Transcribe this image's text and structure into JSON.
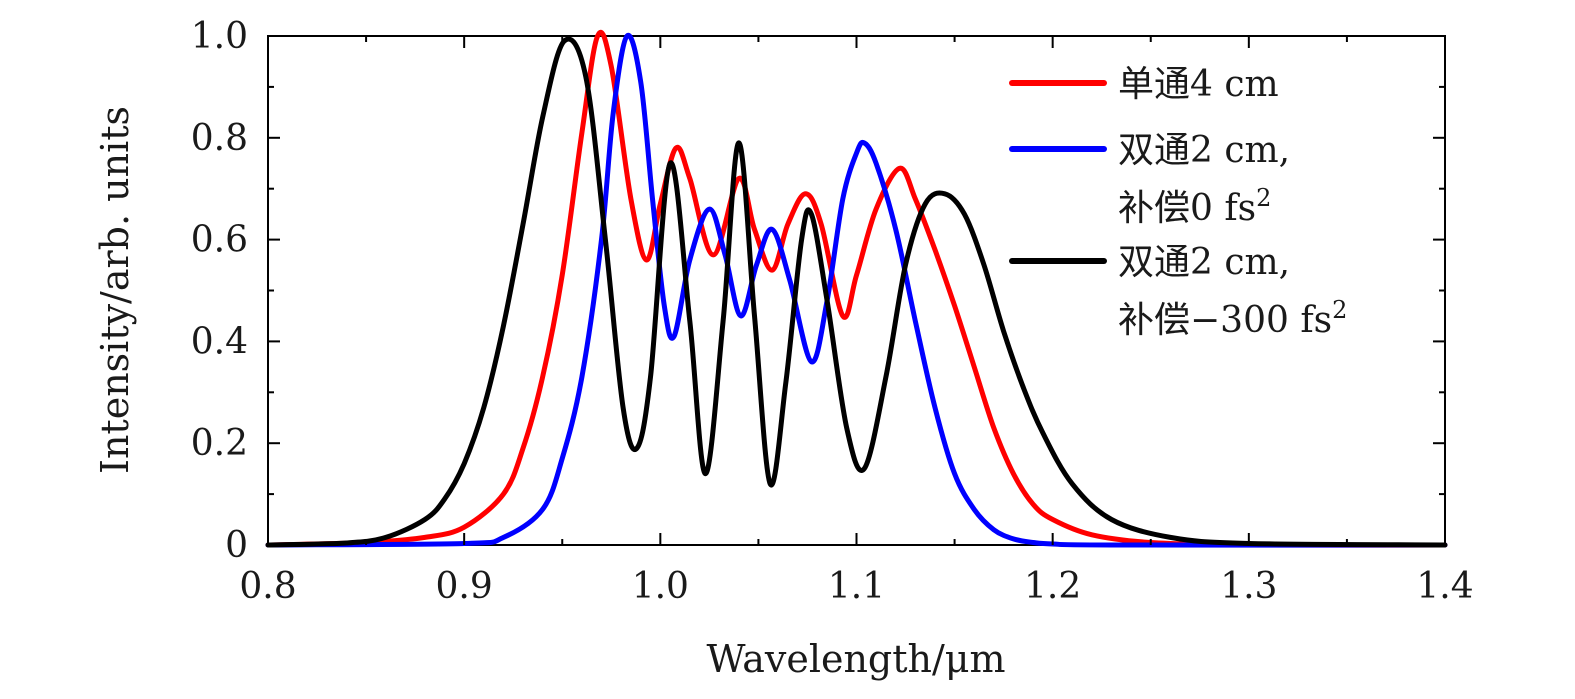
{
  "chart_data": {
    "type": "line",
    "xlabel": "Wavelength/μm",
    "ylabel": "Intensity/arb. units",
    "xlim": [
      0.8,
      1.4
    ],
    "ylim": [
      0,
      1.0
    ],
    "x_ticks": [
      0.8,
      0.9,
      1.0,
      1.1,
      1.2,
      1.3,
      1.4
    ],
    "x_tick_labels": [
      "0.8",
      "0.9",
      "1.0",
      "1.1",
      "1.2",
      "1.3",
      "1.4"
    ],
    "y_ticks": [
      0,
      0.2,
      0.4,
      0.6,
      0.8,
      1.0
    ],
    "y_tick_labels": [
      "0",
      "0.2",
      "0.4",
      "0.6",
      "0.8",
      "1.0"
    ],
    "grid": false,
    "legend_position": "top-right",
    "series": [
      {
        "name": "单通4 cm",
        "legend_lines": [
          "单通4 cm"
        ],
        "color": "#ff0000",
        "x": [
          0.8,
          0.85,
          0.88,
          0.9,
          0.92,
          0.93,
          0.94,
          0.95,
          0.96,
          0.968,
          0.975,
          0.985,
          0.993,
          1.0,
          1.008,
          1.015,
          1.027,
          1.04,
          1.048,
          1.057,
          1.065,
          1.074,
          1.082,
          1.093,
          1.1,
          1.11,
          1.122,
          1.13,
          1.14,
          1.15,
          1.16,
          1.17,
          1.18,
          1.19,
          1.2,
          1.22,
          1.25,
          1.3,
          1.4
        ],
        "y": [
          0.0,
          0.005,
          0.015,
          0.035,
          0.1,
          0.19,
          0.33,
          0.53,
          0.81,
          1.0,
          0.94,
          0.68,
          0.56,
          0.67,
          0.78,
          0.72,
          0.57,
          0.72,
          0.62,
          0.54,
          0.63,
          0.69,
          0.63,
          0.45,
          0.53,
          0.66,
          0.74,
          0.68,
          0.58,
          0.47,
          0.35,
          0.23,
          0.14,
          0.08,
          0.05,
          0.02,
          0.005,
          0.0,
          0.0
        ]
      },
      {
        "name": "双通2 cm, 补偿0 fs2",
        "legend_lines": [
          "双通2 cm,",
          "补偿0 fs"
        ],
        "legend_superscript": "2",
        "color": "#0000ff",
        "x": [
          0.8,
          0.9,
          0.92,
          0.94,
          0.95,
          0.96,
          0.97,
          0.976,
          0.983,
          0.99,
          0.996,
          1.002,
          1.007,
          1.015,
          1.025,
          1.033,
          1.041,
          1.049,
          1.057,
          1.066,
          1.077,
          1.085,
          1.093,
          1.1,
          1.104,
          1.11,
          1.12,
          1.13,
          1.14,
          1.15,
          1.16,
          1.17,
          1.18,
          1.19,
          1.2,
          1.23,
          1.4
        ],
        "y": [
          0.0,
          0.003,
          0.015,
          0.07,
          0.17,
          0.33,
          0.6,
          0.85,
          1.0,
          0.91,
          0.68,
          0.47,
          0.41,
          0.56,
          0.66,
          0.57,
          0.45,
          0.55,
          0.62,
          0.52,
          0.36,
          0.48,
          0.68,
          0.77,
          0.79,
          0.75,
          0.62,
          0.44,
          0.27,
          0.14,
          0.07,
          0.03,
          0.012,
          0.005,
          0.002,
          0.0,
          0.0
        ]
      },
      {
        "name": "双通2 cm, 补偿−300 fs2",
        "legend_lines": [
          "双通2 cm,",
          "补偿−300 fs"
        ],
        "legend_superscript": "2",
        "color": "#000000",
        "x": [
          0.8,
          0.84,
          0.86,
          0.88,
          0.89,
          0.9,
          0.91,
          0.92,
          0.93,
          0.94,
          0.951,
          0.962,
          0.972,
          0.981,
          0.988,
          0.995,
          1.005,
          1.015,
          1.023,
          1.032,
          1.04,
          1.048,
          1.056,
          1.064,
          1.072,
          1.077,
          1.085,
          1.095,
          1.104,
          1.115,
          1.125,
          1.135,
          1.145,
          1.155,
          1.165,
          1.175,
          1.185,
          1.195,
          1.21,
          1.23,
          1.26,
          1.3,
          1.4
        ],
        "y": [
          0.0,
          0.004,
          0.015,
          0.05,
          0.09,
          0.16,
          0.27,
          0.43,
          0.63,
          0.84,
          0.99,
          0.92,
          0.6,
          0.27,
          0.19,
          0.33,
          0.75,
          0.44,
          0.14,
          0.44,
          0.79,
          0.45,
          0.12,
          0.32,
          0.6,
          0.65,
          0.48,
          0.23,
          0.15,
          0.33,
          0.55,
          0.67,
          0.69,
          0.65,
          0.55,
          0.42,
          0.31,
          0.22,
          0.12,
          0.05,
          0.015,
          0.003,
          0.0
        ]
      }
    ]
  }
}
